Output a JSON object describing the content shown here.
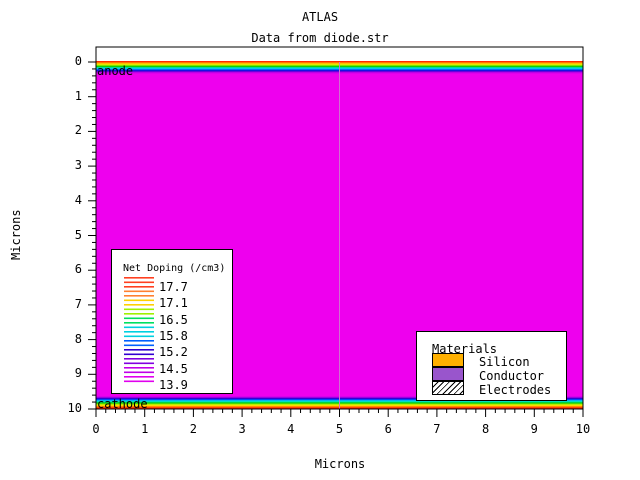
{
  "header": {
    "title": "ATLAS",
    "subtitle": "Data from diode.str"
  },
  "axes": {
    "xlabel": "Microns",
    "ylabel": "Microns",
    "x_ticks": [
      "0",
      "1",
      "2",
      "3",
      "4",
      "5",
      "6",
      "7",
      "8",
      "9",
      "10"
    ],
    "y_ticks": [
      "0",
      "1",
      "2",
      "3",
      "4",
      "5",
      "6",
      "7",
      "8",
      "9",
      "10"
    ]
  },
  "regions": {
    "top_electrode": "anode",
    "bottom_electrode": "cathode"
  },
  "colors": {
    "body": "#ee00ee",
    "contour_bands": [
      "#ff2000",
      "#ff6000",
      "#ffa000",
      "#ffe000",
      "#c8f000",
      "#60e000",
      "#00d000",
      "#00d890",
      "#00e0e0",
      "#00a0ff",
      "#0040ff",
      "#2000d0",
      "#8000e0",
      "#c000e8"
    ],
    "silicon": "#ffb000",
    "conductor": "#9955cc"
  },
  "doping_legend": {
    "title": "Net Doping (/cm3)",
    "levels": [
      "17.7",
      "17.1",
      "16.5",
      "15.8",
      "15.2",
      "14.5",
      "13.9"
    ],
    "colors": [
      "#ff4020",
      "#ff8030",
      "#ffd000",
      "#a0f000",
      "#00e060",
      "#00d0e0",
      "#0060ff",
      "#3000d0",
      "#8000e0",
      "#c000e8",
      "#e000ee"
    ]
  },
  "materials_legend": {
    "title": "Materials",
    "items": [
      {
        "label": "Silicon",
        "color": "#ffb000"
      },
      {
        "label": "Conductor",
        "color": "#9955cc"
      },
      {
        "label": "Electrodes",
        "color": "hatched"
      }
    ]
  },
  "chart_data": {
    "type": "heatmap",
    "title": "ATLAS",
    "subtitle": "Data from diode.str",
    "xlabel": "Microns",
    "ylabel": "Microns",
    "xlim": [
      0,
      10
    ],
    "ylim": [
      10,
      0
    ],
    "colorbar_label": "Net Doping (/cm3)",
    "colorbar_levels": [
      17.7,
      17.1,
      16.5,
      15.8,
      15.2,
      14.5,
      13.9
    ],
    "electrodes": [
      {
        "name": "anode",
        "y": 0
      },
      {
        "name": "cathode",
        "y": 10
      }
    ]
  }
}
